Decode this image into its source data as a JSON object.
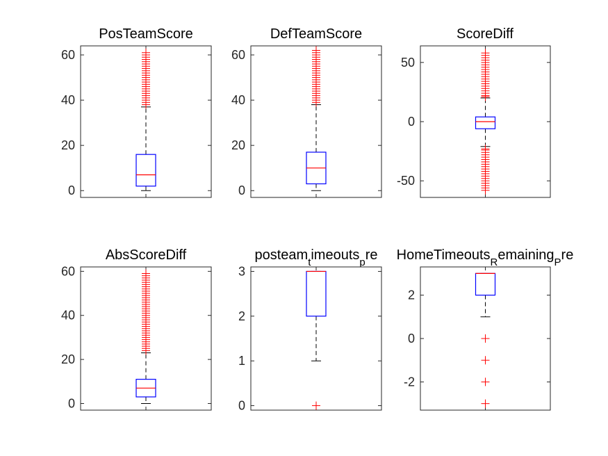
{
  "chart_data": [
    {
      "type": "boxplot",
      "title": "PosTeamScore",
      "ylim": [
        -3,
        64
      ],
      "yticks": [
        0,
        20,
        40,
        60
      ],
      "box": {
        "min": 0,
        "q1": 2,
        "median": 7,
        "q3": 16,
        "max": 37
      },
      "outliers": [
        38,
        39,
        40,
        41,
        42,
        43,
        44,
        45,
        46,
        47,
        48,
        49,
        50,
        51,
        52,
        53,
        54,
        55,
        56,
        57,
        58,
        59,
        60,
        61
      ]
    },
    {
      "type": "boxplot",
      "title": "DefTeamScore",
      "ylim": [
        -3,
        64
      ],
      "yticks": [
        0,
        20,
        40,
        60
      ],
      "box": {
        "min": 0,
        "q1": 3,
        "median": 10,
        "q3": 17,
        "max": 38
      },
      "outliers": [
        39,
        40,
        41,
        42,
        43,
        44,
        45,
        46,
        47,
        48,
        49,
        50,
        51,
        52,
        53,
        54,
        55,
        56,
        57,
        58,
        59,
        60,
        61,
        62
      ]
    },
    {
      "type": "boxplot",
      "title": "ScoreDiff",
      "ylim": [
        -64,
        64
      ],
      "yticks": [
        -50,
        0,
        50
      ],
      "box": {
        "min": -21,
        "q1": -6,
        "median": 0,
        "q3": 4,
        "max": 20
      },
      "outliers": [
        -58,
        -56,
        -54,
        -52,
        -50,
        -48,
        -46,
        -44,
        -42,
        -40,
        -38,
        -36,
        -34,
        -32,
        -30,
        -28,
        -26,
        -24,
        -23,
        21,
        22,
        24,
        26,
        28,
        30,
        32,
        34,
        36,
        38,
        40,
        42,
        44,
        46,
        48,
        50,
        52,
        54,
        56,
        58
      ]
    },
    {
      "type": "boxplot",
      "title": "AbsScoreDiff",
      "ylim": [
        -3,
        62
      ],
      "yticks": [
        0,
        20,
        40,
        60
      ],
      "box": {
        "min": 0,
        "q1": 3,
        "median": 7,
        "q3": 11,
        "max": 23
      },
      "outliers": [
        24,
        25,
        26,
        27,
        28,
        29,
        30,
        31,
        32,
        33,
        34,
        35,
        36,
        37,
        38,
        39,
        40,
        41,
        42,
        43,
        44,
        45,
        46,
        47,
        48,
        49,
        50,
        51,
        52,
        53,
        54,
        55,
        56,
        57,
        58,
        59
      ]
    },
    {
      "type": "boxplot",
      "title": "posteam",
      "title_sub1": "t",
      "title_mid": "imeouts",
      "title_sub2": "p",
      "title_end": "re",
      "ylim": [
        -0.1,
        3.1
      ],
      "yticks": [
        0,
        1,
        2,
        3
      ],
      "box": {
        "min": 1,
        "q1": 2,
        "median": 3,
        "q3": 3,
        "max": 3
      },
      "outliers": [
        0
      ]
    },
    {
      "type": "boxplot",
      "title": "HomeTimeouts",
      "title_sub1": "R",
      "title_mid": "emaining",
      "title_sub2": "P",
      "title_end": "re",
      "ylim": [
        -3.3,
        3.3
      ],
      "yticks": [
        -2,
        0,
        2
      ],
      "box": {
        "min": 1,
        "q1": 2,
        "median": 3,
        "q3": 3,
        "max": 3
      },
      "outliers": [
        0,
        -1,
        -2,
        -3
      ]
    }
  ]
}
